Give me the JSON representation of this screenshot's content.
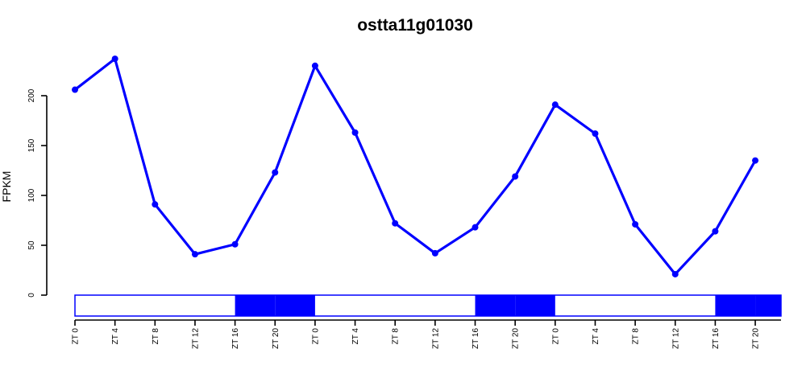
{
  "chart_data": {
    "type": "line",
    "title": "ostta11g01030",
    "xlabel": "",
    "ylabel": "FPKM",
    "x": [
      "ZT 0",
      "ZT 4",
      "ZT 8",
      "ZT 12",
      "ZT 16",
      "ZT 20",
      "ZT 0",
      "ZT 4",
      "ZT 8",
      "ZT 12",
      "ZT 16",
      "ZT 20",
      "ZT 0",
      "ZT 4",
      "ZT 8",
      "ZT 12",
      "ZT 16",
      "ZT 20"
    ],
    "series": [
      {
        "values": [
          206,
          237,
          91,
          41,
          51,
          123,
          230,
          163,
          72,
          42,
          68,
          119,
          191,
          162,
          71,
          21,
          64,
          135
        ]
      }
    ],
    "yticks": [
      0,
      50,
      100,
      150,
      200
    ],
    "ytick_labels": [
      "0",
      "50",
      "100",
      "150",
      "200"
    ],
    "ylim": [
      0,
      237
    ],
    "grid": false,
    "light_dark_bar": [
      "light",
      "light",
      "light",
      "light",
      "dark",
      "dark",
      "light",
      "light",
      "light",
      "light",
      "dark",
      "dark",
      "light",
      "light",
      "light",
      "light",
      "dark",
      "dark"
    ],
    "colors": {
      "line": "#0000ff",
      "dark_period": "#0000ff",
      "light_period": "#ffffff"
    }
  }
}
